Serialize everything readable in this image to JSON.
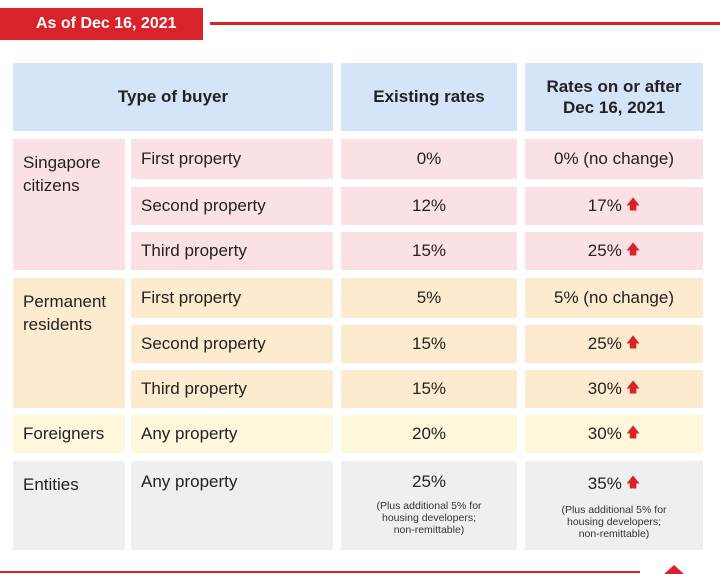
{
  "banner": {
    "date_label": "As of Dec 16, 2021"
  },
  "header": {
    "buyer_type": "Type of buyer",
    "existing": "Existing rates",
    "new_line1": "Rates on or after",
    "new_line2": "Dec 16, 2021"
  },
  "groups": {
    "citizens_l1": "Singapore",
    "citizens_l2": "citizens",
    "pr_l1": "Permanent",
    "pr_l2": "residents",
    "foreigners": "Foreigners",
    "entities": "Entities"
  },
  "rows": [
    {
      "property": "First property",
      "existing": "0%",
      "new": "0% (no change)",
      "increase": false
    },
    {
      "property": "Second property",
      "existing": "12%",
      "new": "17%",
      "increase": true
    },
    {
      "property": "Third property",
      "existing": "15%",
      "new": "25%",
      "increase": true
    },
    {
      "property": "First property",
      "existing": "5%",
      "new": "5% (no change)",
      "increase": false
    },
    {
      "property": "Second property",
      "existing": "15%",
      "new": "25%",
      "increase": true
    },
    {
      "property": "Third property",
      "existing": "15%",
      "new": "30%",
      "increase": true
    },
    {
      "property": "Any property",
      "existing": "20%",
      "new": "30%",
      "increase": true
    },
    {
      "property": "Any property",
      "existing": "25%",
      "new": "35%",
      "increase": true
    }
  ],
  "entity_notes": {
    "l1": "(Plus additional 5% for",
    "l2": "housing developers;",
    "l3": "non-remittable)"
  },
  "colors": {
    "accent_red": "#d8232a",
    "header_blue": "#d5e4f8",
    "citizens_pink": "#fbe1e4",
    "pr_orange": "#fdebcf",
    "foreigners_yellow": "#fdf7dc",
    "entities_grey": "#efefef"
  },
  "icons": {
    "increase": "arrow-up-icon"
  }
}
